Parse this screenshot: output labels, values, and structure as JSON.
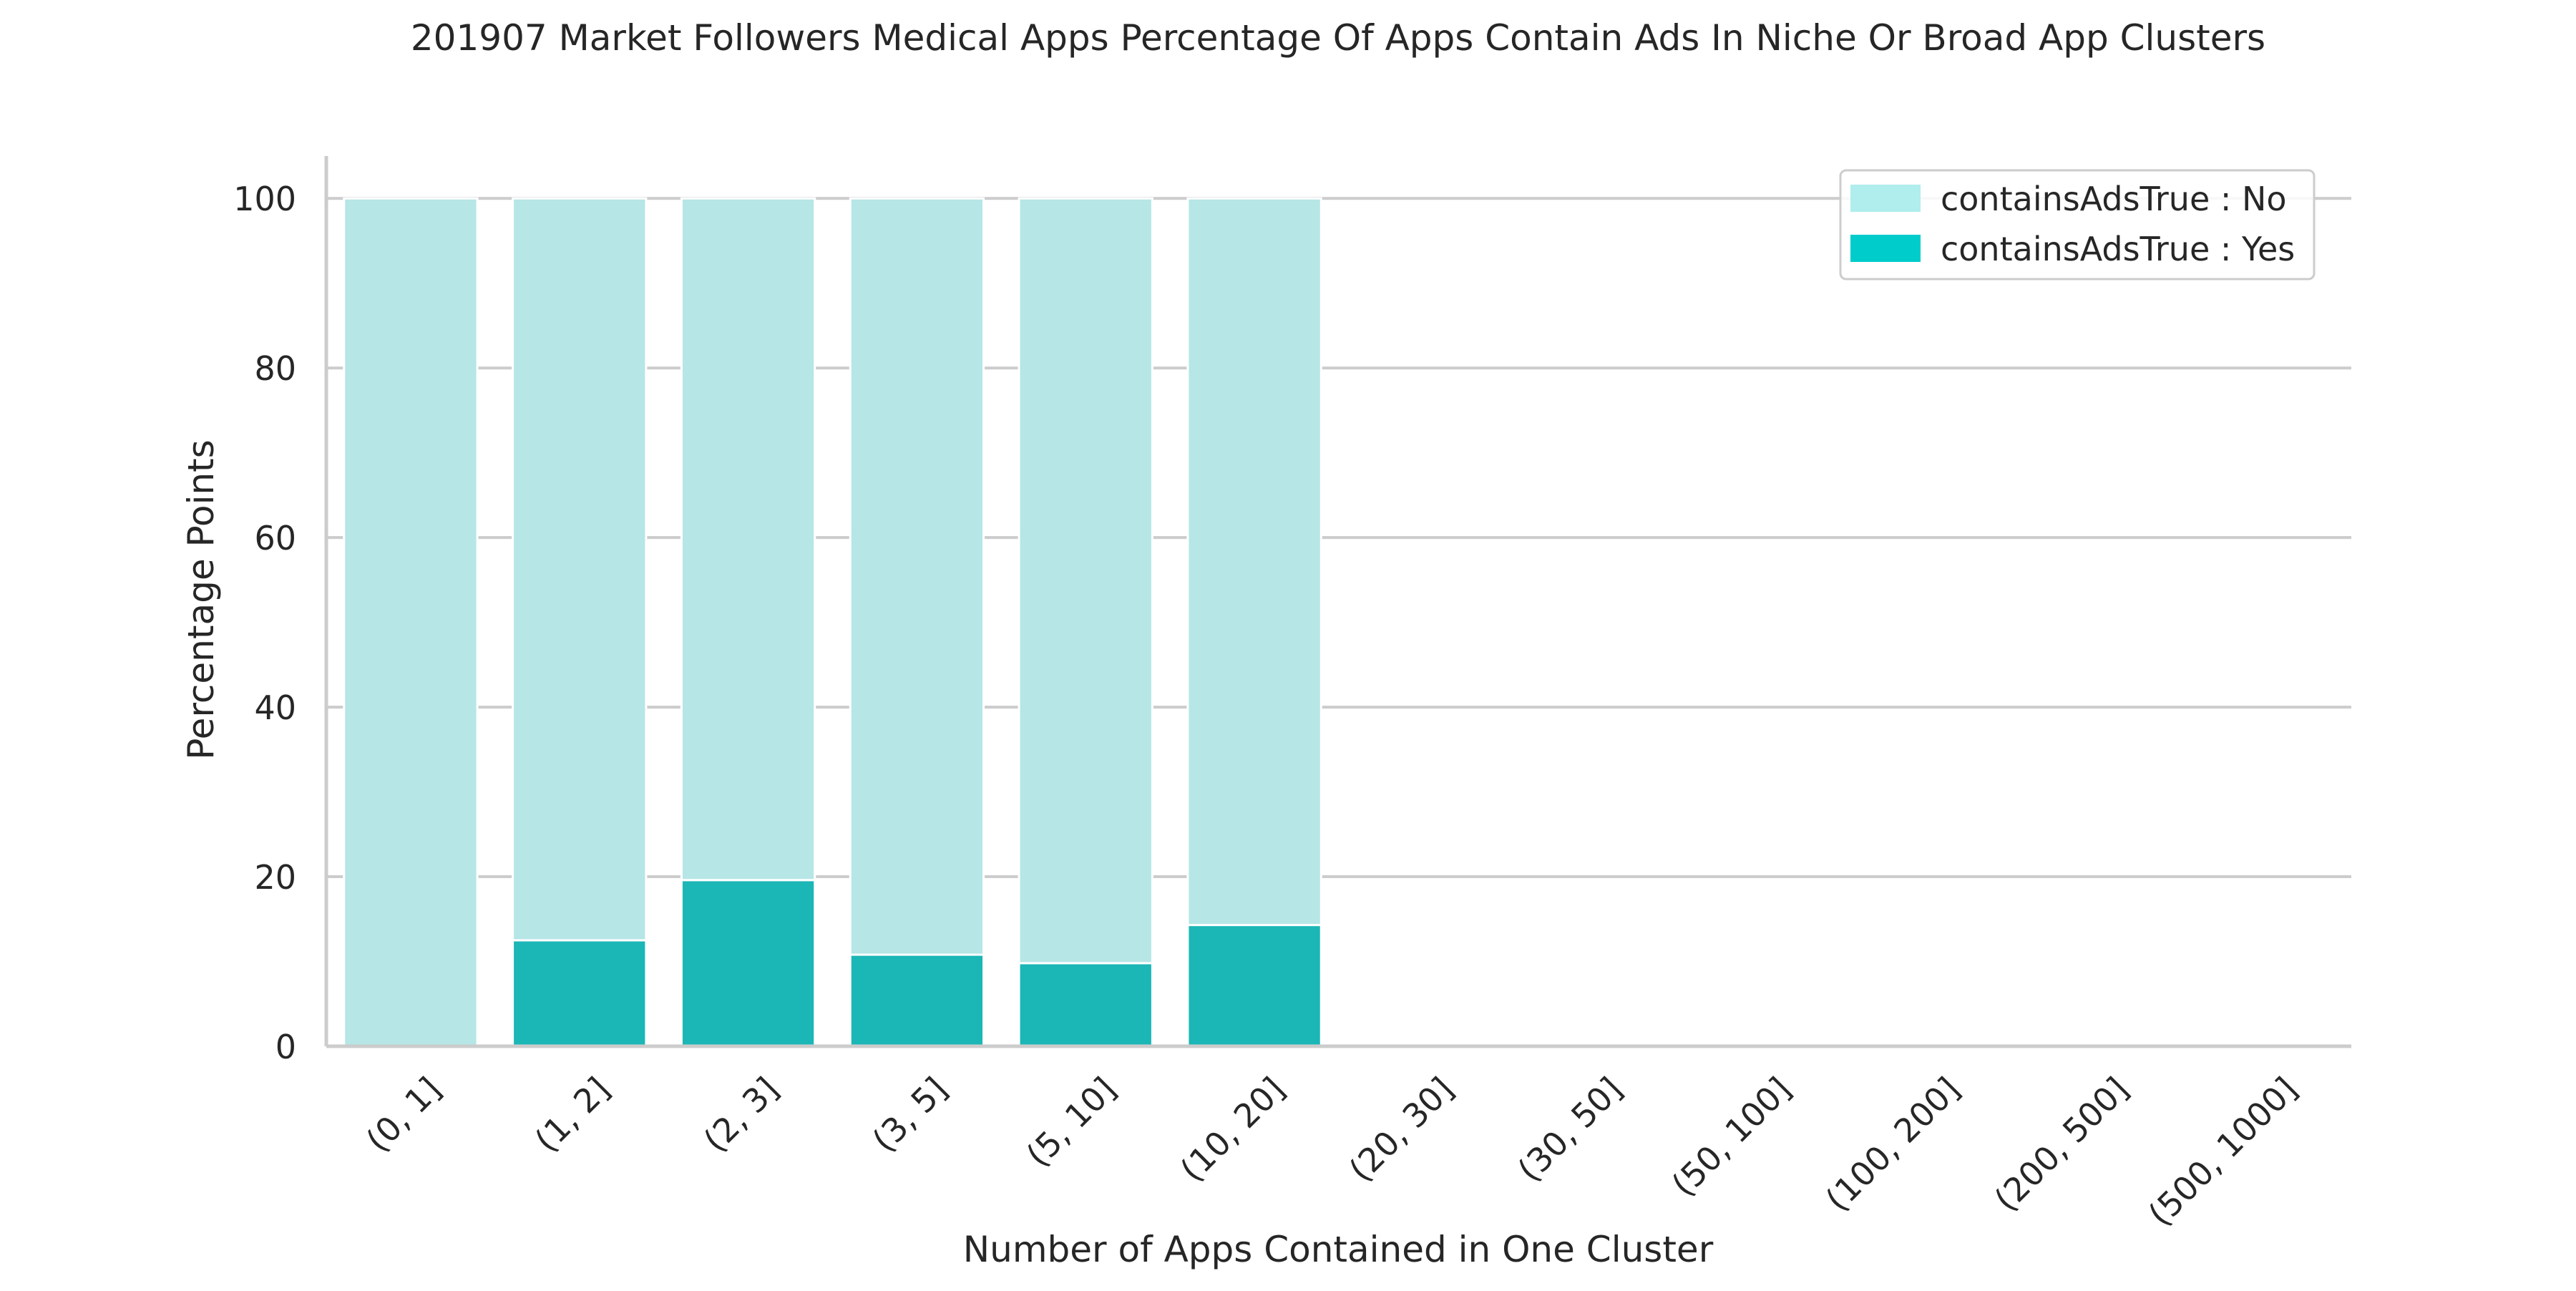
{
  "chart_data": {
    "type": "bar",
    "stacked": true,
    "title": "201907 Market Followers Medical Apps Percentage Of Apps Contain Ads In Niche Or Broad App Clusters",
    "xlabel": "Number of Apps Contained in One Cluster",
    "ylabel": "Percentage Points",
    "categories": [
      "(0, 1]",
      "(1, 2]",
      "(2, 3]",
      "(3, 5]",
      "(5, 10]",
      "(10, 20]",
      "(20, 30]",
      "(30, 50]",
      "(50, 100]",
      "(100, 200]",
      "(200, 500]",
      "(500, 1000]"
    ],
    "series": [
      {
        "name": "containsAdsTrue : Yes",
        "color": "#1bb6b6",
        "legend_color": "#00cccc",
        "values": [
          0,
          12.5,
          19.6,
          10.8,
          9.8,
          14.3,
          0,
          0,
          0,
          0,
          0,
          0
        ]
      },
      {
        "name": "containsAdsTrue : No",
        "color": "#b6e6e6",
        "legend_color": "#b0eded",
        "values": [
          100,
          87.5,
          80.4,
          89.2,
          90.2,
          85.7,
          0,
          0,
          0,
          0,
          0,
          0
        ]
      }
    ],
    "legend_order": [
      "containsAdsTrue : No",
      "containsAdsTrue : Yes"
    ],
    "ylim": [
      0,
      105
    ],
    "yticks": [
      0,
      20,
      40,
      60,
      80,
      100
    ],
    "grid": "horizontal",
    "legend_position": "top-right",
    "axis_color": "#cccccc",
    "grid_color": "#cccccc"
  }
}
